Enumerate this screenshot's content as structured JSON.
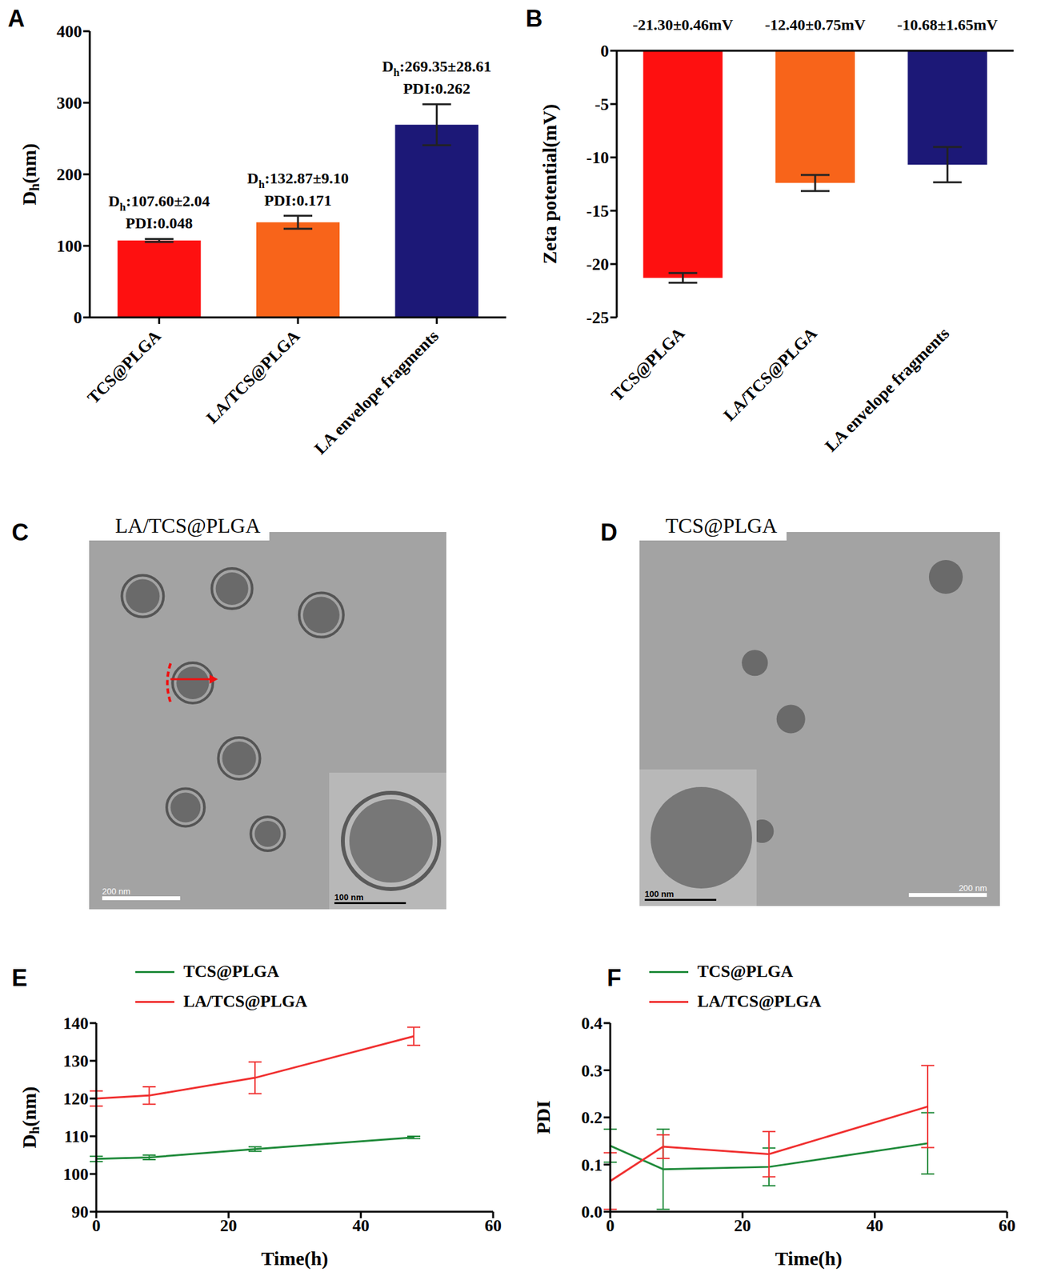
{
  "chart_data": [
    {
      "panel": "A",
      "type": "bar",
      "categories": [
        "TCS@PLGA",
        "LA/TCS@PLGA",
        "LA envelope fragments"
      ],
      "values": [
        107.6,
        132.87,
        269.35
      ],
      "errors": [
        2.04,
        9.1,
        28.61
      ],
      "colors": [
        "#fe1010",
        "#f8641a",
        "#1c1877"
      ],
      "annotations": [
        [
          "Dh:107.60±2.04",
          "PDI:0.048"
        ],
        [
          "Dh:132.87±9.10",
          "PDI:0.171"
        ],
        [
          "Dh:269.35±28.61",
          "PDI:0.262"
        ]
      ],
      "y_label": "Dh(nm)",
      "ylim": [
        0,
        400
      ],
      "yticks": [
        0,
        100,
        200,
        300,
        400
      ]
    },
    {
      "panel": "B",
      "type": "bar",
      "categories": [
        "TCS@PLGA",
        "LA/TCS@PLGA",
        "LA envelope fragments"
      ],
      "values": [
        -21.3,
        -12.4,
        -10.68
      ],
      "errors": [
        0.46,
        0.75,
        1.65
      ],
      "colors": [
        "#fe1010",
        "#f8641a",
        "#1c1877"
      ],
      "annotations": [
        "-21.30±0.46mV",
        "-12.40±0.75mV",
        "-10.68±1.65mV"
      ],
      "y_label": "Zeta potential(mV)",
      "ylim": [
        -25,
        0
      ],
      "yticks": [
        -25,
        -20,
        -15,
        -10,
        -5,
        0
      ]
    },
    {
      "panel": "E",
      "type": "line",
      "x": [
        0,
        8,
        24,
        48
      ],
      "xlim": [
        0,
        60
      ],
      "xticks": [
        0,
        20,
        40,
        60
      ],
      "x_label": "Time(h)",
      "y_label": "Dh(nm)",
      "ylim": [
        90,
        140
      ],
      "yticks": [
        90,
        100,
        110,
        120,
        130,
        140
      ],
      "legend": "upper left",
      "series": [
        {
          "name": "TCS@PLGA",
          "color": "#1f8a3a",
          "values": [
            104,
            104.4,
            106.6,
            109.7
          ],
          "errors": [
            0.7,
            0.6,
            0.6,
            0.3
          ]
        },
        {
          "name": "LA/TCS@PLGA",
          "color": "#f03030",
          "values": [
            120,
            120.8,
            125.5,
            136.5
          ],
          "errors": [
            2,
            2.3,
            4.2,
            2.4
          ]
        }
      ]
    },
    {
      "panel": "F",
      "type": "line",
      "x": [
        0,
        8,
        24,
        48
      ],
      "xlim": [
        0,
        60
      ],
      "xticks": [
        0,
        20,
        40,
        60
      ],
      "x_label": "Time(h)",
      "y_label": "PDI",
      "ylim": [
        0,
        0.4
      ],
      "yticks": [
        {
          "value": 0,
          "label": "0.0"
        },
        0.1,
        0.2,
        0.3,
        0.4
      ],
      "legend": "upper left",
      "series": [
        {
          "name": "TCS@PLGA",
          "color": "#1f8a3a",
          "values": [
            0.14,
            0.09,
            0.095,
            0.145
          ],
          "errors": [
            0.035,
            0.085,
            0.04,
            0.065
          ]
        },
        {
          "name": "LA/TCS@PLGA",
          "color": "#f03030",
          "values": [
            0.065,
            0.138,
            0.122,
            0.223
          ],
          "errors": [
            0.06,
            0.025,
            0.048,
            0.087
          ]
        }
      ]
    }
  ],
  "images": [
    {
      "panel": "C",
      "label": "LA/TCS@PLGA",
      "scale_bar": "200 nm",
      "inset_scale_bar": "100 nm"
    },
    {
      "panel": "D",
      "label": "TCS@PLGA",
      "scale_bar": "200 nm",
      "inset_scale_bar": "100 nm"
    }
  ]
}
